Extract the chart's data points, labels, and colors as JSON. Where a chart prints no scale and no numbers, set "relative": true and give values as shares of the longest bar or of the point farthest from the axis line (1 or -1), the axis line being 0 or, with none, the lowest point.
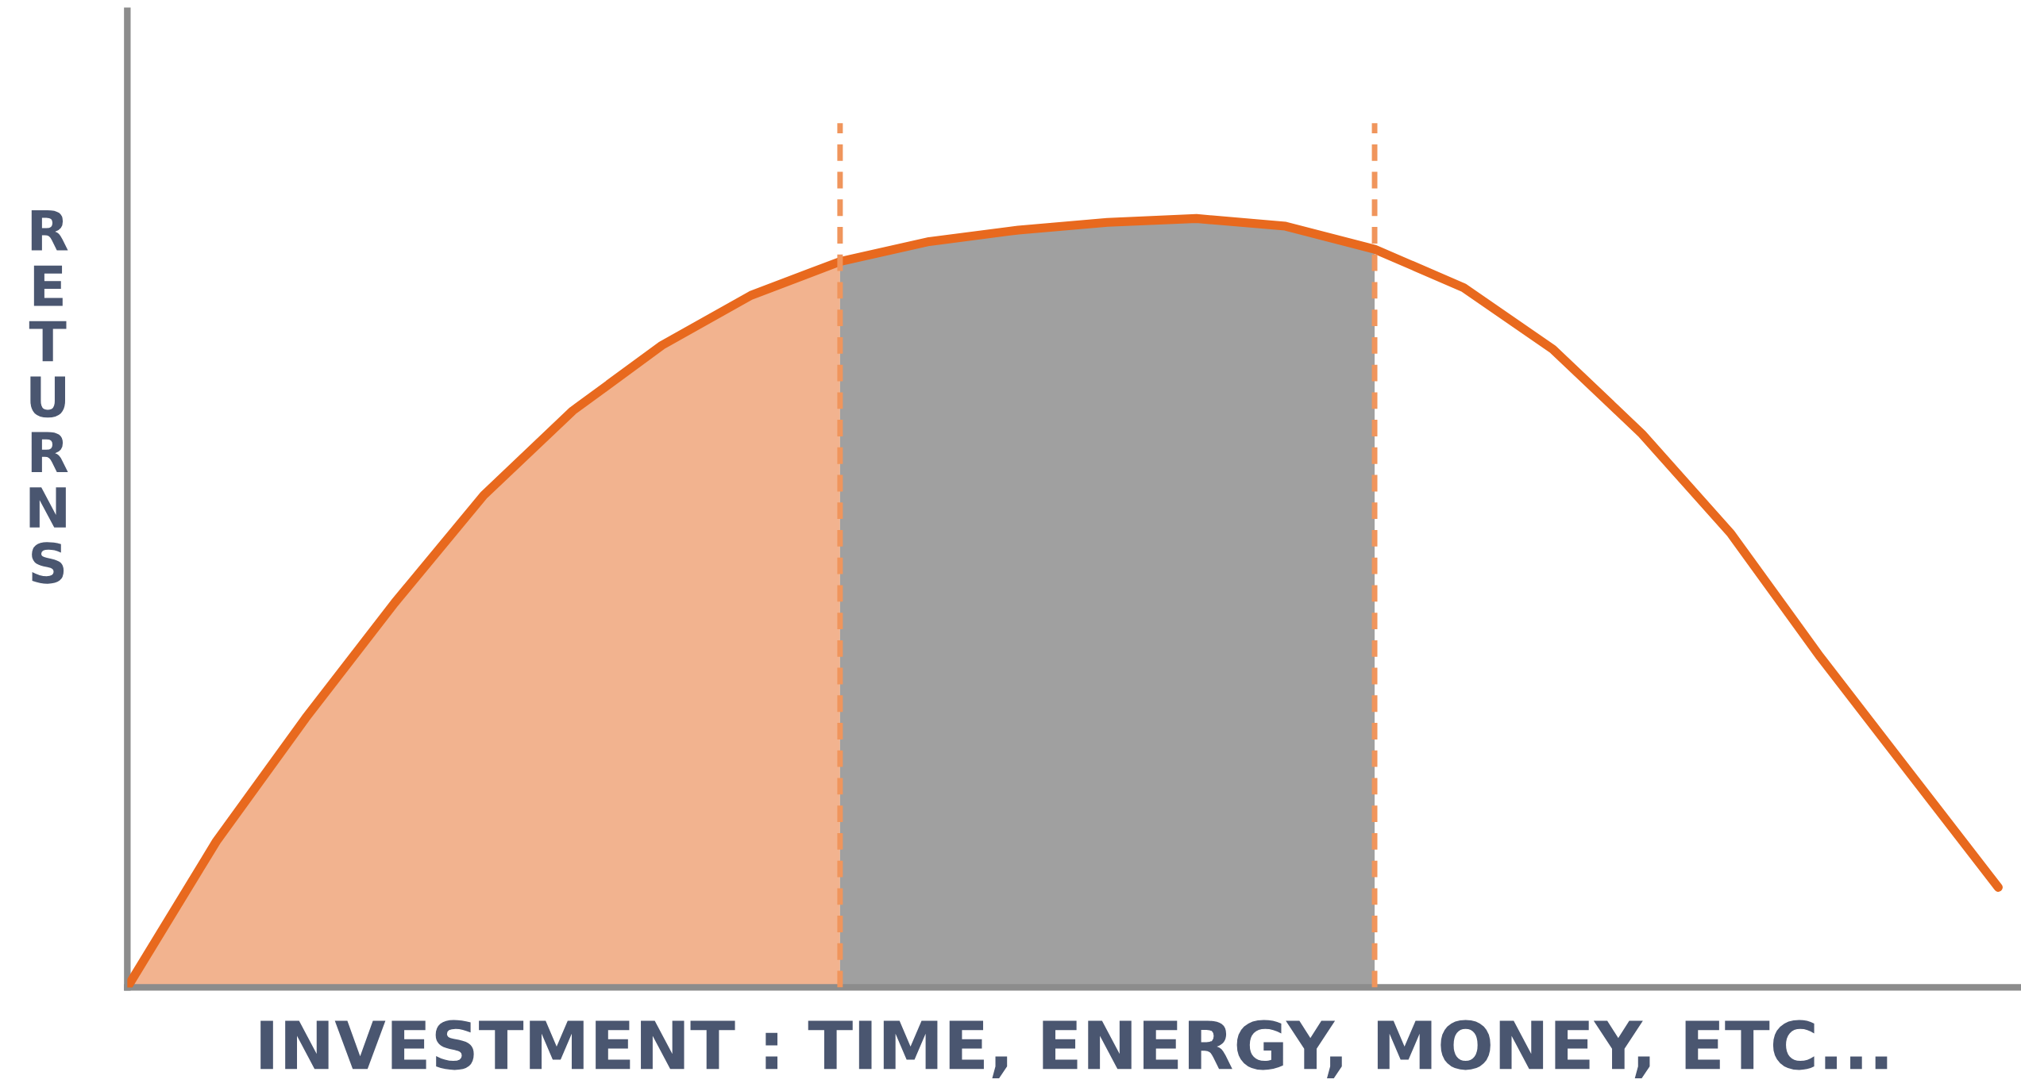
{
  "chart_data": {
    "type": "line",
    "relative": true,
    "xlabel": "INVESTMENT : TIME, ENERGY, MONEY, ETC...",
    "ylabel": "RETURNS",
    "categories": [
      null,
      null,
      null,
      null,
      null,
      null,
      null,
      null,
      null,
      null,
      null,
      null,
      null,
      null,
      null,
      null,
      null,
      null,
      null,
      null,
      null,
      null
    ],
    "series": [
      {
        "type": "area",
        "color": "#f2b38f",
        "values": [
          0.0,
          0.19,
          0.35,
          0.5,
          0.64,
          0.75,
          0.835,
          0.9,
          0.944,
          null,
          null,
          null,
          null,
          null,
          null,
          null,
          null,
          null,
          null,
          null,
          null,
          null
        ]
      },
      {
        "type": "area",
        "color": "#a0a0a0",
        "values": [
          null,
          null,
          null,
          null,
          null,
          null,
          null,
          null,
          0.944,
          0.97,
          0.985,
          0.995,
          1.0,
          0.99,
          0.96,
          null,
          null,
          null,
          null,
          null,
          null,
          null
        ]
      },
      {
        "color": "#e8691e",
        "values": [
          0.0,
          0.19,
          0.35,
          0.5,
          0.64,
          0.75,
          0.835,
          0.9,
          0.944,
          0.97,
          0.985,
          0.995,
          1.0,
          0.99,
          0.96,
          0.91,
          0.83,
          0.72,
          0.59,
          0.43,
          0.28,
          0.13
        ]
      }
    ]
  }
}
